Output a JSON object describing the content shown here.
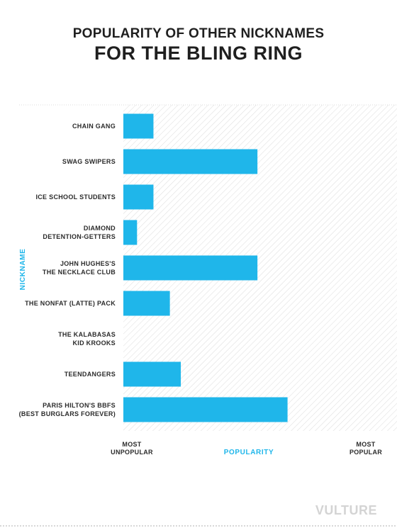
{
  "title_line1": "POPULARITY OF OTHER NICKNAMES",
  "title_line2": "FOR THE BLING RING",
  "logo": "VULTURE",
  "colors": {
    "bar": "#1fb6ea",
    "accent": "#1fb6ea",
    "hatch": "#dcdcdc"
  },
  "chart_data": {
    "type": "bar",
    "orientation": "horizontal",
    "ylabel": "NICKNAME",
    "xlabel": "POPULARITY",
    "x_min_label": [
      "MOST",
      "UNPOPULAR"
    ],
    "x_max_label": [
      "MOST",
      "POPULAR"
    ],
    "xlim": [
      0,
      100
    ],
    "categories": [
      [
        "CHAIN GANG"
      ],
      [
        "SWAG SWIPERS"
      ],
      [
        "ICE SCHOOL STUDENTS"
      ],
      [
        "DIAMOND",
        "DETENTION-GETTERS"
      ],
      [
        "JOHN HUGHES'S",
        "THE NECKLACE CLUB"
      ],
      [
        "THE NONFAT (LATTE) PACK"
      ],
      [
        "THE KALABASAS",
        "KID KROOKS"
      ],
      [
        "TEENDANGERS"
      ],
      [
        "PARIS HILTON'S BBFS",
        "(BEST BURGLARS FOREVER)"
      ]
    ],
    "values": [
      11,
      49,
      11,
      5,
      49,
      17,
      0,
      21,
      60
    ],
    "grid": false,
    "background": "diagonal hatch"
  }
}
